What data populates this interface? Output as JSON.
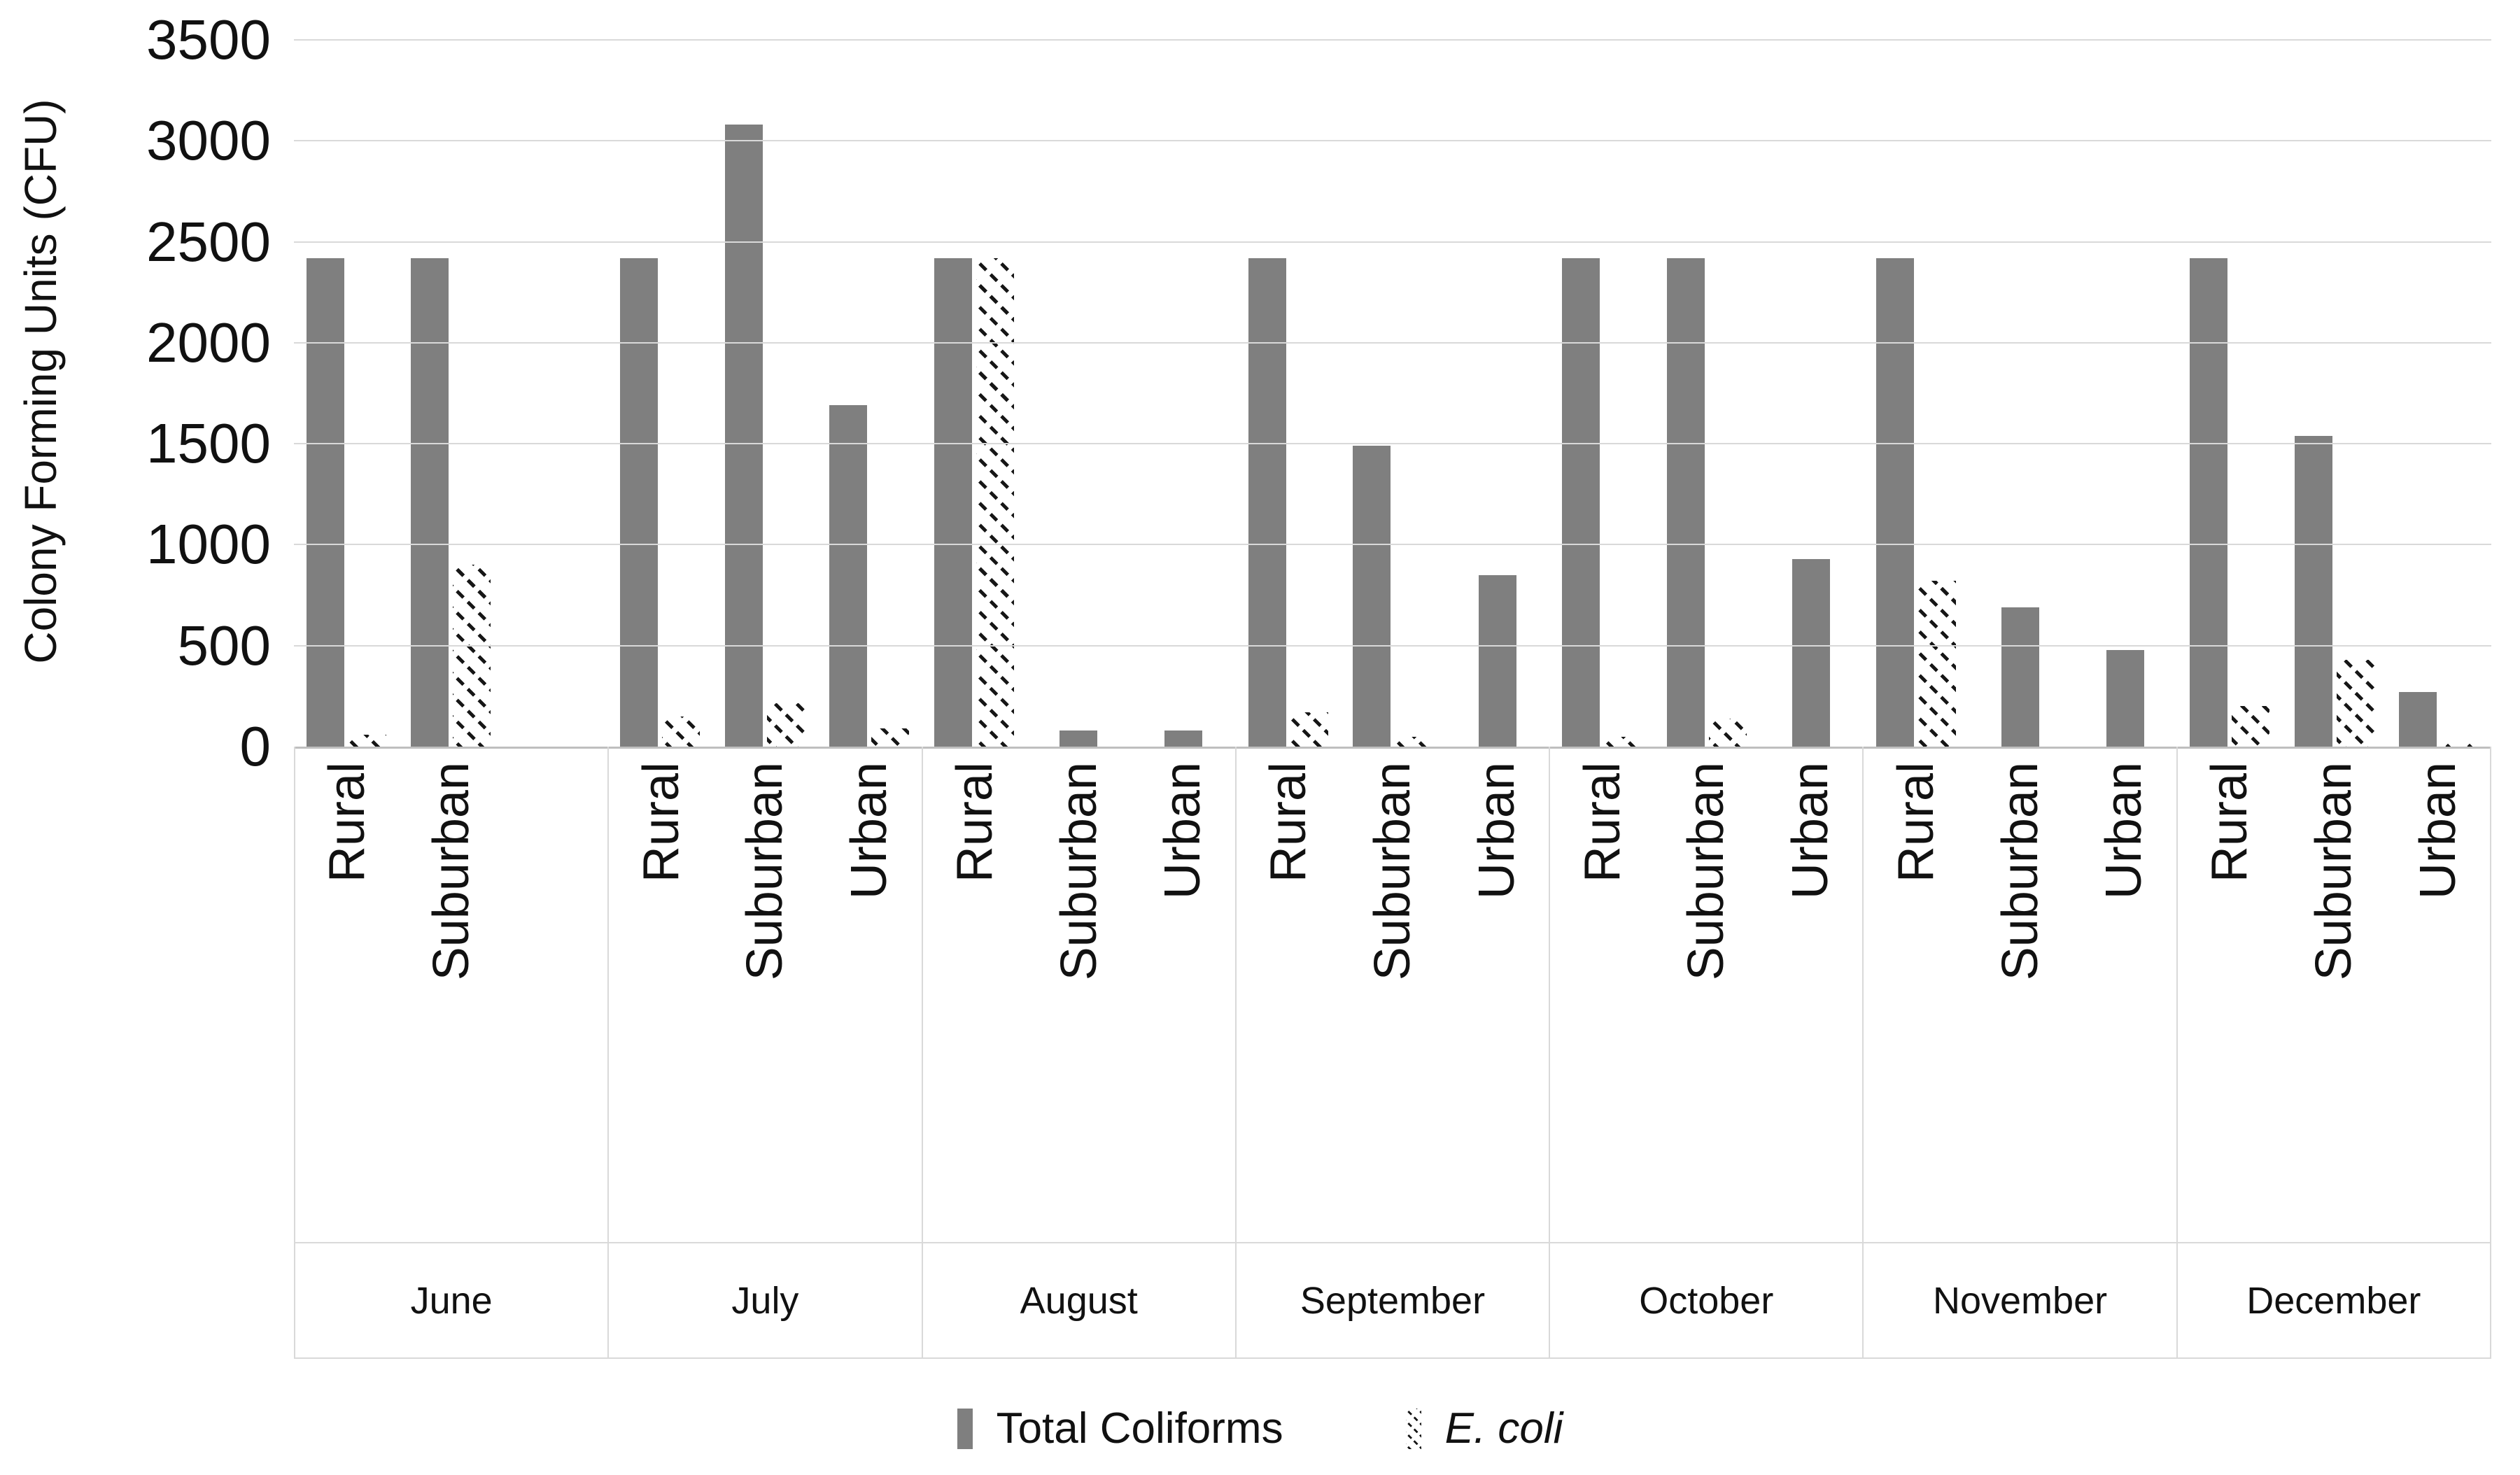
{
  "y_axis": {
    "title": "Colony Forming Units (CFU)",
    "tick_labels": [
      "0",
      "500",
      "1000",
      "1500",
      "2000",
      "2500",
      "3000",
      "3500"
    ]
  },
  "legend": {
    "items": [
      {
        "label": "Total Coliforms",
        "swatch": "solid-gray",
        "italic": false
      },
      {
        "label": "E. coli",
        "swatch": "diagonal-hatch",
        "italic": true
      }
    ]
  },
  "colors": {
    "bar_fill": "#7f7f7f",
    "gridline": "#d9d9d9",
    "axis_line": "#bfbfbf",
    "label_border": "#d9d9d9",
    "hatch_stroke": "#161616",
    "text": "#111111"
  },
  "chart_data": {
    "type": "bar",
    "title": "",
    "xlabel": "",
    "ylabel": "Colony Forming Units (CFU)",
    "ylim": [
      0,
      3500
    ],
    "ytick_step": 500,
    "grid": true,
    "legend_position": "bottom",
    "series_names": [
      "Total Coliforms",
      "E. coli"
    ],
    "categories": [
      "June",
      "July",
      "August",
      "September",
      "October",
      "November",
      "December"
    ],
    "slots_per_month": 3,
    "groups": [
      {
        "month": "June",
        "bars": [
          {
            "location": "Rural",
            "total_coliforms": 2420,
            "e_coli": 60
          },
          {
            "location": "Suburban",
            "total_coliforms": 2420,
            "e_coli": 900
          }
        ]
      },
      {
        "month": "July",
        "bars": [
          {
            "location": "Rural",
            "total_coliforms": 2420,
            "e_coli": 150
          },
          {
            "location": "Suburban",
            "total_coliforms": 3080,
            "e_coli": 215
          },
          {
            "location": "Urban",
            "total_coliforms": 1690,
            "e_coli": 90
          }
        ]
      },
      {
        "month": "August",
        "bars": [
          {
            "location": "Rural",
            "total_coliforms": 2420,
            "e_coli": 2420
          },
          {
            "location": "Suburban",
            "total_coliforms": 80,
            "e_coli": 0
          },
          {
            "location": "Urban",
            "total_coliforms": 80,
            "e_coli": 0
          }
        ]
      },
      {
        "month": "September",
        "bars": [
          {
            "location": "Rural",
            "total_coliforms": 2420,
            "e_coli": 170
          },
          {
            "location": "Suburban",
            "total_coliforms": 1490,
            "e_coli": 50
          },
          {
            "location": "Urban",
            "total_coliforms": 850,
            "e_coli": 0
          }
        ]
      },
      {
        "month": "October",
        "bars": [
          {
            "location": "Rural",
            "total_coliforms": 2420,
            "e_coli": 50
          },
          {
            "location": "Suburban",
            "total_coliforms": 2420,
            "e_coli": 140
          },
          {
            "location": "Urban",
            "total_coliforms": 930,
            "e_coli": 0
          }
        ]
      },
      {
        "month": "November",
        "bars": [
          {
            "location": "Rural",
            "total_coliforms": 2420,
            "e_coli": 820
          },
          {
            "location": "Suburban",
            "total_coliforms": 690,
            "e_coli": 0
          },
          {
            "location": "Urban",
            "total_coliforms": 480,
            "e_coli": 0
          }
        ]
      },
      {
        "month": "December",
        "bars": [
          {
            "location": "Rural",
            "total_coliforms": 2420,
            "e_coli": 200
          },
          {
            "location": "Suburban",
            "total_coliforms": 1540,
            "e_coli": 430
          },
          {
            "location": "Urban",
            "total_coliforms": 270,
            "e_coli": 25
          }
        ]
      }
    ]
  }
}
